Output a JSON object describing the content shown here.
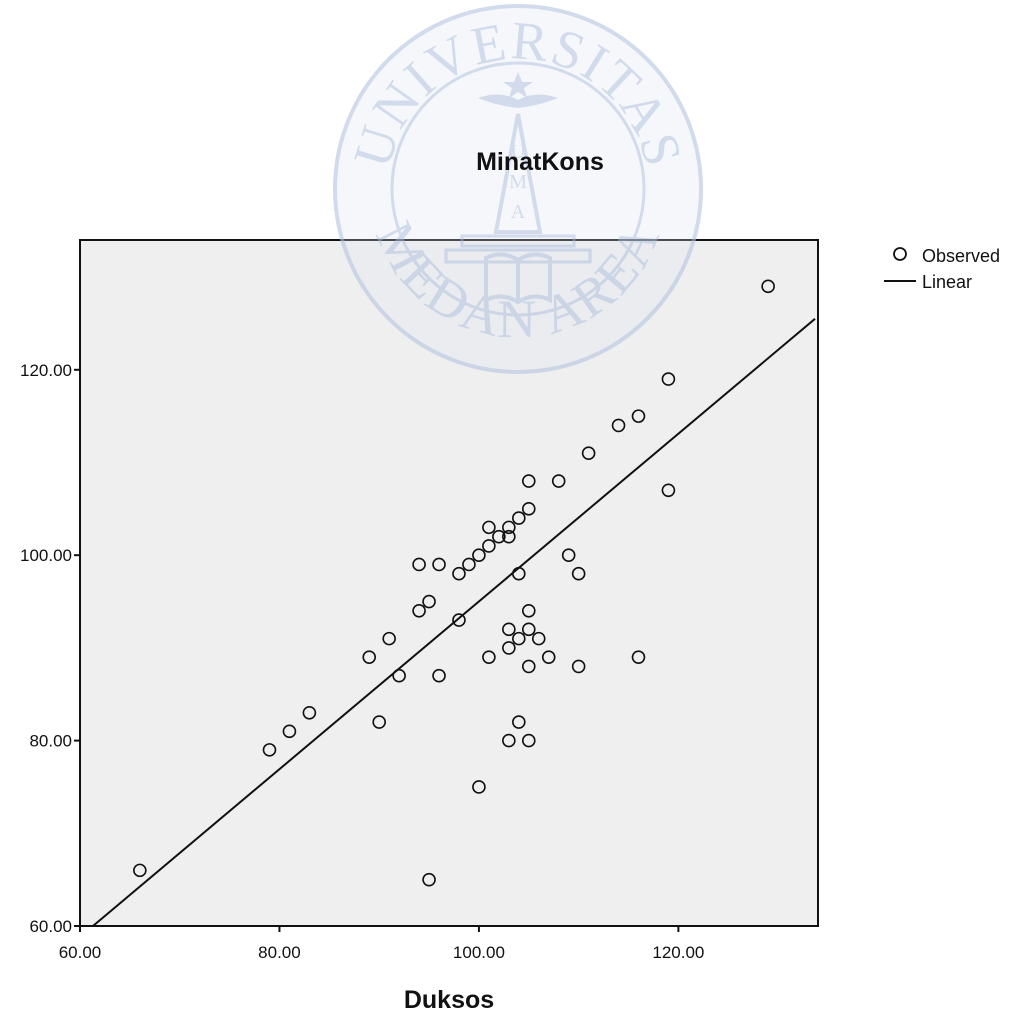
{
  "chart_data": {
    "type": "scatter",
    "title": "MinatKons",
    "xlabel": "Duksos",
    "ylabel": "",
    "xlim": [
      60,
      134
    ],
    "ylim": [
      60,
      134
    ],
    "x_ticks": [
      {
        "value": 60,
        "label": "60.00"
      },
      {
        "value": 80,
        "label": "80.00"
      },
      {
        "value": 100,
        "label": "100.00"
      },
      {
        "value": 120,
        "label": "120.00"
      }
    ],
    "y_ticks": [
      {
        "value": 60,
        "label": "60.00"
      },
      {
        "value": 80,
        "label": "80.00"
      },
      {
        "value": 100,
        "label": "100.00"
      },
      {
        "value": 120,
        "label": "120.00"
      }
    ],
    "grid": false,
    "legend_position": "top-right",
    "series": [
      {
        "name": "Observed",
        "kind": "points",
        "points": [
          [
            66,
            66
          ],
          [
            79,
            79
          ],
          [
            81,
            81
          ],
          [
            83,
            83
          ],
          [
            89,
            89
          ],
          [
            90,
            82
          ],
          [
            91,
            91
          ],
          [
            92,
            87
          ],
          [
            94,
            99
          ],
          [
            94,
            94
          ],
          [
            95,
            95
          ],
          [
            95,
            65
          ],
          [
            96,
            99
          ],
          [
            96,
            87
          ],
          [
            98,
            98
          ],
          [
            98,
            93
          ],
          [
            99,
            99
          ],
          [
            100,
            100
          ],
          [
            100,
            75
          ],
          [
            101,
            103
          ],
          [
            101,
            101
          ],
          [
            101,
            89
          ],
          [
            102,
            102
          ],
          [
            103,
            103
          ],
          [
            103,
            102
          ],
          [
            103,
            92
          ],
          [
            103,
            90
          ],
          [
            103,
            80
          ],
          [
            104,
            104
          ],
          [
            104,
            98
          ],
          [
            104,
            91
          ],
          [
            104,
            82
          ],
          [
            105,
            108
          ],
          [
            105,
            105
          ],
          [
            105,
            94
          ],
          [
            105,
            92
          ],
          [
            105,
            88
          ],
          [
            105,
            80
          ],
          [
            106,
            91
          ],
          [
            107,
            89
          ],
          [
            108,
            108
          ],
          [
            109,
            100
          ],
          [
            110,
            98
          ],
          [
            110,
            88
          ],
          [
            111,
            111
          ],
          [
            114,
            114
          ],
          [
            116,
            115
          ],
          [
            116,
            89
          ],
          [
            119,
            119
          ],
          [
            119,
            107
          ],
          [
            129,
            129
          ]
        ]
      },
      {
        "name": "Linear",
        "kind": "line",
        "points": [
          [
            61.3,
            60
          ],
          [
            133.7,
            125.5
          ]
        ]
      }
    ]
  },
  "watermark": {
    "top_text": "UNIVERSITAS",
    "bottom_text": "MEDAN AREA",
    "monogram": [
      "U",
      "M",
      "A"
    ],
    "color": "#b6c6e2"
  },
  "colors": {
    "plot_background": "#efefef",
    "ink": "#111111"
  }
}
